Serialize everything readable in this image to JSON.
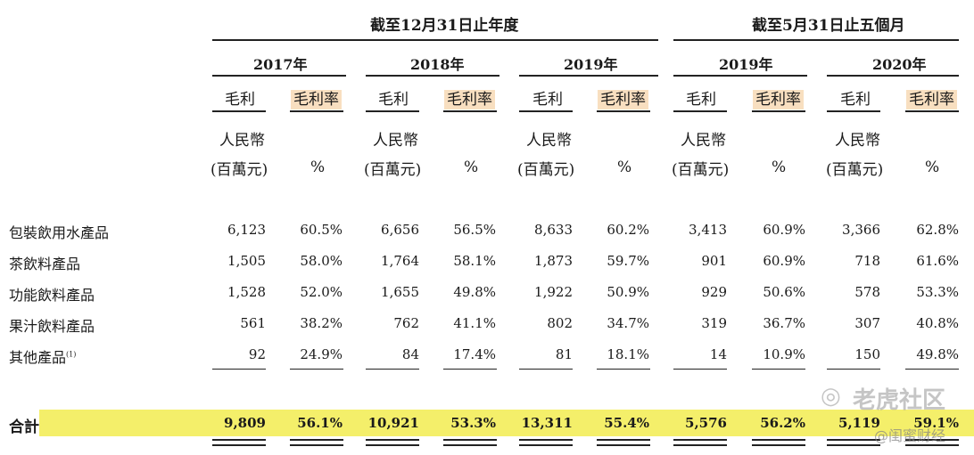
{
  "headers": {
    "group1": "截至12月31日止年度",
    "group2": "截至5月31日止五個月",
    "years": [
      "2017年",
      "2018年",
      "2019年",
      "2019年",
      "2020年"
    ],
    "gross_profit": "毛利",
    "gross_margin": "毛利率",
    "unit_rmb_line1": "人民幣",
    "unit_rmb_line2": "(百萬元)",
    "unit_pct": "%"
  },
  "rows": [
    {
      "label": "包裝飲用水產品",
      "note": "",
      "values": [
        "6,123",
        "60.5%",
        "6,656",
        "56.5%",
        "8,633",
        "60.2%",
        "3,413",
        "60.9%",
        "3,366",
        "62.8%"
      ]
    },
    {
      "label": "茶飲料產品",
      "note": "",
      "values": [
        "1,505",
        "58.0%",
        "1,764",
        "58.1%",
        "1,873",
        "59.7%",
        "901",
        "60.9%",
        "718",
        "61.6%"
      ]
    },
    {
      "label": "功能飲料產品",
      "note": "",
      "values": [
        "1,528",
        "52.0%",
        "1,655",
        "49.8%",
        "1,922",
        "50.9%",
        "929",
        "50.6%",
        "578",
        "53.3%"
      ]
    },
    {
      "label": "果汁飲料產品",
      "note": "",
      "values": [
        "561",
        "38.2%",
        "762",
        "41.1%",
        "802",
        "34.7%",
        "319",
        "36.7%",
        "307",
        "40.8%"
      ]
    },
    {
      "label": "其他產品",
      "note": "(1)",
      "values": [
        "92",
        "24.9%",
        "84",
        "17.4%",
        "81",
        "18.1%",
        "14",
        "10.9%",
        "150",
        "49.8%"
      ]
    }
  ],
  "total": {
    "label": "合計",
    "values": [
      "9,809",
      "56.1%",
      "10,921",
      "53.3%",
      "13,311",
      "55.4%",
      "5,576",
      "56.2%",
      "5,119",
      "59.1%"
    ]
  },
  "watermark": {
    "line1": "老虎社区",
    "line2": "@闺蜜财经"
  },
  "colors": {
    "total_highlight": "#f4ef6a",
    "header_highlight": "#f8dfc0"
  }
}
